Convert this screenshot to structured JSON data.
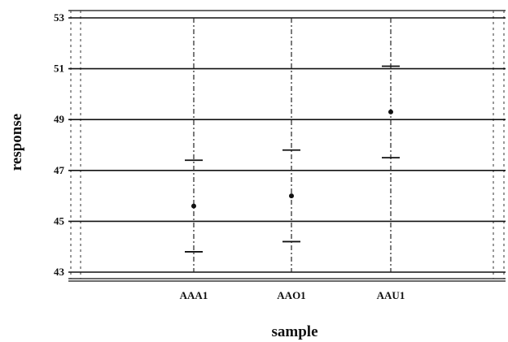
{
  "chart_data": {
    "type": "interval",
    "title": "",
    "xlabel": "sample",
    "ylabel": "response",
    "categories": [
      "AAA1",
      "AAO1",
      "AAU1"
    ],
    "ylim": [
      43,
      53
    ],
    "yticks": [
      43,
      45,
      47,
      49,
      51,
      53
    ],
    "grid": "horizontal",
    "series": [
      {
        "values": [
          {
            "category": "AAA1",
            "lower": 43.8,
            "mean": 45.6,
            "upper": 47.4
          },
          {
            "category": "AAO1",
            "lower": 44.2,
            "mean": 46.0,
            "upper": 47.8
          },
          {
            "category": "AAU1",
            "lower": 47.5,
            "mean": 49.3,
            "upper": 51.1
          }
        ]
      }
    ]
  }
}
